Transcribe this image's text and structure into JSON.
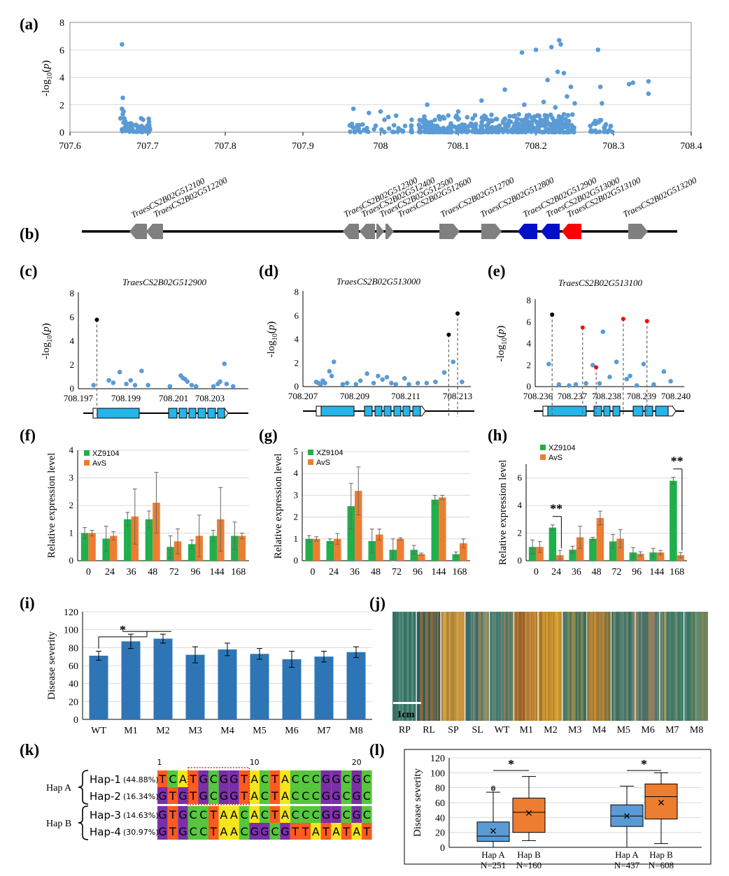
{
  "panel_labels": [
    "(a)",
    "(b)",
    "(c)",
    "(d)",
    "(e)",
    "(f)",
    "(g)",
    "(h)",
    "(i)",
    "(j)",
    "(k)",
    "(l)"
  ],
  "colors": {
    "point": "#5b9bd5",
    "green": "#1fb04b",
    "orange": "#ed7d31",
    "bar_blue": "#2e75b6",
    "box_blue": "#5b9bd5",
    "box_orange": "#ed7d31",
    "gene_grey": "#808080",
    "gene_blue": "#0010c8",
    "gene_red": "#ff0000",
    "exon": "#25b5e8"
  },
  "panel_a": {
    "ylabel": "-log10(p)",
    "yticks": [
      "0",
      "2",
      "4",
      "6",
      "8"
    ],
    "xticks": [
      "707.6",
      "707.7",
      "707.8",
      "707.9",
      "708",
      "708.1",
      "708.2",
      "708.3",
      "708.4"
    ]
  },
  "panel_b": {
    "genes": [
      {
        "name": "TraesCS2B02G512100",
        "color": "grey"
      },
      {
        "name": "TraesCS2B02G512200",
        "color": "grey"
      },
      {
        "name": "TraesCS2B02G512300",
        "color": "grey"
      },
      {
        "name": "TraesCS2B02G512400",
        "color": "grey"
      },
      {
        "name": "TraesCS2B02G512500",
        "color": "grey"
      },
      {
        "name": "TraesCS2B02G512600",
        "color": "grey"
      },
      {
        "name": "TraesCS2B02G512700",
        "color": "grey"
      },
      {
        "name": "TraesCS2B02G512800",
        "color": "grey"
      },
      {
        "name": "TraesCS2B02G512900",
        "color": "blue"
      },
      {
        "name": "TraesCS2B02G513000",
        "color": "blue"
      },
      {
        "name": "TraesCS2B02G513100",
        "color": "red"
      },
      {
        "name": "TraesCS2B02G513200",
        "color": "grey"
      }
    ]
  },
  "panel_c": {
    "title": "TraesCS2B02G512900",
    "ylabel": "-log10(p)",
    "yticks": [
      "0",
      "2",
      "4",
      "6",
      "8"
    ],
    "xticks": [
      "708.197",
      "708.199",
      "708.201",
      "708.203"
    ]
  },
  "panel_d": {
    "title": "TraesCS2B02G513000",
    "ylabel": "-log10(p)",
    "yticks": [
      "0",
      "2",
      "4",
      "6",
      "8"
    ],
    "xticks": [
      "708.207",
      "708.209",
      "708.211",
      "708.213"
    ]
  },
  "panel_e": {
    "title": "TraesCS2B02G513100",
    "ylabel": "-log10(p)",
    "yticks": [
      "0",
      "2",
      "4",
      "6",
      "8"
    ],
    "xticks": [
      "708.236",
      "708.237",
      "708.238",
      "708.239",
      "708.240"
    ]
  },
  "expression": {
    "ylabel": "Relative expression level",
    "legend": [
      "XZ9104",
      "AvS"
    ],
    "categories": [
      "0",
      "24",
      "36",
      "48",
      "72",
      "96",
      "144",
      "168"
    ],
    "significance": "**"
  },
  "panel_i": {
    "ylabel": "Disease severity",
    "star": "*",
    "yticks": [
      "0",
      "20",
      "40",
      "60",
      "80",
      "100",
      "120"
    ]
  },
  "panel_j": {
    "labels": [
      "RP",
      "RL",
      "SP",
      "SL",
      "WT",
      "M1",
      "M2",
      "M3",
      "M4",
      "M5",
      "M6",
      "M7",
      "M8"
    ],
    "scale_bar": "1cm"
  },
  "panel_k": {
    "groups": [
      "Hap A",
      "Hap B"
    ],
    "positions": [
      "1",
      "10",
      "20"
    ],
    "haplotypes": [
      {
        "name": "Hap-1",
        "pct": "(44.88%)",
        "seq": "TCATGCGGTACTACCCGGCGC"
      },
      {
        "name": "Hap-2",
        "pct": "(16.34%)",
        "seq": "GTGTGCGGTACTACCCGGCGC"
      },
      {
        "name": "Hap-3",
        "pct": "(14.63%)",
        "seq": "GTGCCTAACACTACCCGGCGC"
      },
      {
        "name": "Hap-4",
        "pct": "(30.97%)",
        "seq": "GTGCCTAACGGCGTTATATAT"
      }
    ]
  },
  "panel_l": {
    "ylabel": "Disease severity",
    "yticks": [
      "0",
      "20",
      "40",
      "60",
      "80",
      "100",
      "120"
    ],
    "star": "*",
    "groups": [
      {
        "name": "Hap A",
        "n": "N=251"
      },
      {
        "name": "Hap B",
        "n": "N=160"
      },
      {
        "name": "Hap A",
        "n": "N=437"
      },
      {
        "name": "Hap B",
        "n": "N=608"
      }
    ]
  },
  "chart_data": [
    {
      "id": "a",
      "type": "scatter",
      "title": "",
      "xlabel": "",
      "ylabel": "-log10(p)",
      "xlim": [
        707.6,
        708.4
      ],
      "ylim": [
        0,
        8
      ],
      "x": [
        707.667,
        707.668,
        707.667,
        707.669,
        707.668,
        707.67,
        707.671,
        707.669,
        707.672,
        707.673,
        707.667,
        707.675,
        707.678,
        707.68,
        707.685,
        707.69,
        707.695,
        707.7,
        707.703,
        707.965,
        707.963,
        707.985,
        708.0,
        708.005,
        708.01,
        708.02,
        708.04,
        708.055,
        708.06,
        708.08,
        708.1,
        708.13,
        708.16,
        708.178,
        708.182,
        708.185,
        708.2,
        708.21,
        708.215,
        708.22,
        708.225,
        708.228,
        708.23,
        708.232,
        708.236,
        708.24,
        708.245,
        708.25,
        708.28,
        708.283,
        708.285,
        708.32,
        708.325,
        708.345,
        708.345
      ],
      "y": [
        6.4,
        2.5,
        1.7,
        1.5,
        1.3,
        1.0,
        0.8,
        0.7,
        0.5,
        0.3,
        0.2,
        0.6,
        0.4,
        0.3,
        0.5,
        0.4,
        0.3,
        0.5,
        0.2,
        1.7,
        0.6,
        1.4,
        1.5,
        0.9,
        1.1,
        1.2,
        0.9,
        0.7,
        2.0,
        1.1,
        1.5,
        2.3,
        3.1,
        1.3,
        5.8,
        2.0,
        6.0,
        2.2,
        3.8,
        6.2,
        1.8,
        4.4,
        6.7,
        6.4,
        4.3,
        2.6,
        3.3,
        2.1,
        6.0,
        3.3,
        2.1,
        3.5,
        3.6,
        3.7,
        2.8
      ]
    },
    {
      "id": "c",
      "type": "scatter",
      "title": "TraesCS2B02G512900",
      "ylabel": "-log10(p)",
      "xlim": [
        708.1966,
        708.2044
      ],
      "ylim": [
        0,
        8
      ],
      "x": [
        708.1973,
        708.19745,
        708.198,
        708.1982,
        708.1985,
        708.1988,
        708.199,
        708.1992,
        708.1995,
        708.1998,
        708.2008,
        708.2013,
        708.2014,
        708.2015,
        708.2016,
        708.2018,
        708.202,
        708.2028,
        708.203,
        708.2031,
        708.2033,
        708.2034,
        708.2037
      ],
      "y": [
        0.3,
        5.8,
        0.7,
        0.5,
        1.4,
        0.4,
        0.7,
        0.3,
        1.5,
        0.3,
        0.2,
        1.1,
        0.9,
        0.8,
        0.6,
        0.3,
        0.2,
        0.2,
        0.4,
        0.6,
        2.1,
        0.4,
        0.2
      ],
      "highlight": [
        1
      ]
    },
    {
      "id": "d",
      "type": "scatter",
      "title": "TraesCS2B02G513000",
      "ylabel": "-log10(p)",
      "xlim": [
        708.2066,
        708.2142
      ],
      "ylim": [
        0,
        8
      ],
      "x": [
        708.2072,
        708.2073,
        708.2074,
        708.2075,
        708.2076,
        708.2078,
        708.2079,
        708.208,
        708.2084,
        708.2086,
        708.209,
        708.2092,
        708.2095,
        708.2098,
        708.21,
        708.2102,
        708.2104,
        708.2106,
        708.2108,
        708.2112,
        708.2114,
        708.2118,
        708.2122,
        708.2126,
        708.213,
        708.2132,
        708.2134,
        708.2136,
        708.2138
      ],
      "y": [
        0.4,
        0.3,
        0.2,
        0.5,
        0.3,
        1.3,
        0.9,
        2.1,
        0.2,
        0.3,
        0.2,
        0.5,
        1.1,
        0.3,
        0.9,
        0.6,
        0.8,
        0.3,
        0.2,
        0.7,
        0.2,
        0.3,
        0.3,
        0.4,
        1.2,
        4.4,
        2.1,
        6.2,
        0.4
      ],
      "highlight": [
        25,
        27
      ]
    },
    {
      "id": "e",
      "type": "scatter",
      "title": "TraesCS2B02G513100",
      "ylabel": "-log10(p)",
      "xlim": [
        708.2358,
        708.2402
      ],
      "ylim": [
        0,
        8
      ],
      "x": [
        708.2362,
        708.2363,
        708.2365,
        708.2368,
        708.237,
        708.2372,
        708.2373,
        708.2375,
        708.2376,
        708.2377,
        708.2378,
        708.238,
        708.2382,
        708.2384,
        708.2385,
        708.2386,
        708.2388,
        708.239,
        708.2391,
        708.2393,
        708.2396,
        708.2398
      ],
      "y": [
        2.1,
        6.7,
        0.2,
        0.1,
        0.2,
        5.5,
        0.3,
        2.0,
        1.8,
        0.3,
        5.1,
        0.9,
        2.3,
        6.3,
        0.7,
        1.0,
        0.1,
        2.1,
        6.1,
        0.2,
        1.4,
        0.5
      ],
      "highlight": [
        1
      ],
      "highlight_red": [
        5,
        8,
        13,
        18
      ]
    },
    {
      "id": "f",
      "type": "bar",
      "categories": [
        "0",
        "24",
        "36",
        "48",
        "72",
        "96",
        "144",
        "168"
      ],
      "ylim": [
        0,
        4
      ],
      "series": [
        {
          "name": "XZ9104",
          "values": [
            1.0,
            0.8,
            1.5,
            1.5,
            0.5,
            0.6,
            0.9,
            0.9
          ],
          "err": [
            0.2,
            0.45,
            0.25,
            0.3,
            0.4,
            0.15,
            0.2,
            0.5
          ]
        },
        {
          "name": "AvS",
          "values": [
            1.0,
            0.9,
            1.6,
            2.1,
            0.7,
            0.9,
            1.5,
            0.9
          ],
          "err": [
            0.1,
            0.15,
            1.0,
            1.1,
            0.45,
            0.75,
            1.15,
            0.1
          ]
        }
      ]
    },
    {
      "id": "g",
      "type": "bar",
      "categories": [
        "0",
        "24",
        "36",
        "48",
        "72",
        "96",
        "144",
        "168"
      ],
      "ylim": [
        0,
        5
      ],
      "series": [
        {
          "name": "XZ9104",
          "values": [
            1.0,
            0.9,
            2.5,
            0.9,
            0.5,
            0.5,
            2.8,
            0.3
          ],
          "err": [
            0.15,
            0.1,
            1.05,
            0.55,
            0.5,
            0.2,
            0.2,
            0.1
          ]
        },
        {
          "name": "AvS",
          "values": [
            1.0,
            1.0,
            3.2,
            1.2,
            1.0,
            0.3,
            2.9,
            0.8
          ],
          "err": [
            0.1,
            0.25,
            1.1,
            0.25,
            0.05,
            0.05,
            0.1,
            0.2
          ]
        }
      ]
    },
    {
      "id": "h",
      "type": "bar",
      "categories": [
        "0",
        "24",
        "36",
        "48",
        "72",
        "96",
        "144",
        "168"
      ],
      "ylim": [
        0,
        7
      ],
      "series": [
        {
          "name": "XZ9104",
          "values": [
            1.0,
            2.4,
            0.8,
            1.6,
            1.4,
            0.6,
            0.6,
            5.8
          ],
          "err": [
            0.5,
            0.2,
            0.25,
            0.1,
            0.5,
            0.35,
            0.3,
            0.25
          ]
        },
        {
          "name": "AvS",
          "values": [
            1.0,
            0.4,
            1.7,
            3.1,
            1.6,
            0.5,
            0.6,
            0.4
          ],
          "err": [
            0.4,
            0.35,
            0.8,
            0.5,
            0.65,
            0.15,
            0.15,
            0.2
          ]
        }
      ]
    },
    {
      "id": "i",
      "type": "bar",
      "categories": [
        "WT",
        "M1",
        "M2",
        "M3",
        "M4",
        "M5",
        "M6",
        "M7",
        "M8"
      ],
      "ylim": [
        0,
        120
      ],
      "values": [
        71,
        87,
        90,
        72,
        78,
        73,
        67,
        70,
        75
      ],
      "err": [
        5,
        8,
        5,
        9,
        7,
        6,
        9,
        6,
        6
      ]
    },
    {
      "id": "l",
      "type": "box",
      "categories": [
        "Hap A N=251",
        "Hap B N=160",
        "Hap A N=437",
        "Hap B N=608"
      ],
      "ylim": [
        0,
        120
      ],
      "boxes": [
        {
          "min": 0,
          "q1": 8,
          "median": 15,
          "q3": 34,
          "max": 74,
          "mean": 22,
          "outliers": [
            78,
            80
          ]
        },
        {
          "min": 9,
          "q1": 20,
          "median": 47,
          "q3": 66,
          "max": 95,
          "mean": 46
        },
        {
          "min": 0,
          "q1": 28,
          "median": 42,
          "q3": 57,
          "max": 82,
          "mean": 42
        },
        {
          "min": 5,
          "q1": 38,
          "median": 68,
          "q3": 85,
          "max": 100,
          "mean": 60
        }
      ]
    }
  ]
}
